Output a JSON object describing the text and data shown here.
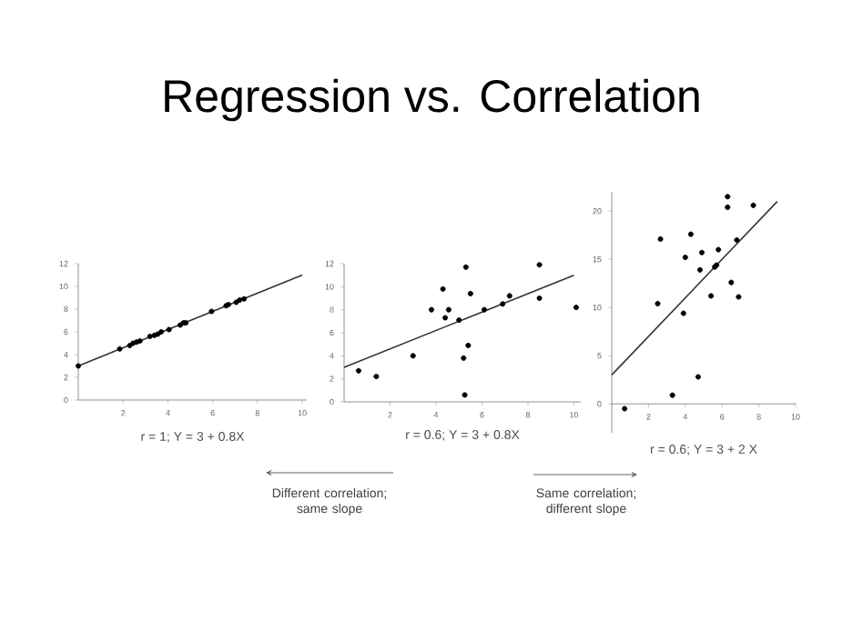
{
  "chart_data": [
    {
      "type": "scatter",
      "title": "Regression vs. Correlation",
      "xlabel": "r = 1;  Y = 3 + 0.8X",
      "xlim": [
        0,
        10.2
      ],
      "ylim": [
        0,
        12
      ],
      "xticks": [
        2,
        4,
        6,
        8,
        10
      ],
      "yticks": [
        0,
        2,
        4,
        6,
        8,
        10,
        12
      ],
      "series": [
        {
          "marker": "circle",
          "color": "#000000",
          "x": [
            0,
            1.85,
            2.3,
            2.45,
            2.6,
            2.75,
            3.2,
            3.4,
            3.55,
            3.7,
            4.05,
            4.55,
            4.7,
            4.8,
            5.95,
            6.6,
            6.7,
            7.05,
            7.2,
            7.4
          ],
          "values": [
            3.0,
            4.5,
            4.8,
            5.0,
            5.1,
            5.2,
            5.6,
            5.7,
            5.8,
            6.0,
            6.2,
            6.6,
            6.8,
            6.8,
            7.8,
            8.3,
            8.4,
            8.6,
            8.8,
            8.9
          ]
        },
        {
          "type": "line",
          "marker": "none",
          "color": "#333333",
          "x": [
            0,
            10
          ],
          "values": [
            3,
            11
          ]
        }
      ]
    },
    {
      "type": "scatter",
      "xlabel": "r = 0.6;  Y = 3 + 0.8X",
      "annotations": [
        "Different correlation; same slope",
        "Same correlation; different slope"
      ],
      "xlim": [
        0,
        10.3
      ],
      "ylim": [
        0,
        12
      ],
      "xticks": [
        2,
        4,
        6,
        8,
        10
      ],
      "yticks": [
        0,
        2,
        4,
        6,
        8,
        10,
        12
      ],
      "series": [
        {
          "marker": "circle",
          "color": "#000000",
          "x": [
            0.63,
            1.4,
            3.0,
            3.8,
            4.3,
            4.4,
            4.55,
            5.0,
            5.2,
            5.3,
            5.4,
            5.25,
            5.5,
            6.1,
            6.9,
            7.2,
            8.5,
            8.5,
            10.1
          ],
          "values": [
            2.7,
            2.2,
            4.0,
            8.0,
            9.8,
            7.3,
            8.0,
            7.1,
            3.8,
            11.7,
            4.9,
            0.6,
            9.4,
            8.0,
            8.5,
            9.2,
            11.9,
            9.0,
            8.2
          ]
        },
        {
          "type": "line",
          "marker": "none",
          "color": "#333333",
          "x": [
            0,
            10
          ],
          "values": [
            3,
            11
          ]
        }
      ]
    },
    {
      "type": "scatter",
      "xlabel": "r = 0.6;  Y = 3 + 2 X",
      "xlim": [
        0,
        10
      ],
      "ylim": [
        -3,
        22
      ],
      "xticks": [
        2,
        4,
        6,
        8,
        10
      ],
      "yticks": [
        0,
        5,
        10,
        15,
        20
      ],
      "series": [
        {
          "marker": "circle",
          "color": "#000000",
          "x": [
            0.7,
            2.65,
            2.5,
            3.3,
            4.3,
            4.0,
            3.9,
            4.9,
            4.8,
            4.7,
            5.4,
            5.8,
            5.6,
            5.7,
            6.3,
            6.3,
            6.8,
            6.5,
            6.9,
            7.7
          ],
          "values": [
            -0.5,
            17.1,
            10.4,
            0.9,
            17.6,
            15.2,
            9.4,
            15.7,
            13.9,
            2.8,
            11.2,
            16.0,
            14.2,
            14.4,
            20.4,
            21.5,
            17.0,
            12.6,
            11.1,
            20.6
          ]
        },
        {
          "type": "line",
          "marker": "none",
          "color": "#333333",
          "x": [
            0,
            9
          ],
          "values": [
            3,
            21
          ]
        }
      ]
    }
  ]
}
